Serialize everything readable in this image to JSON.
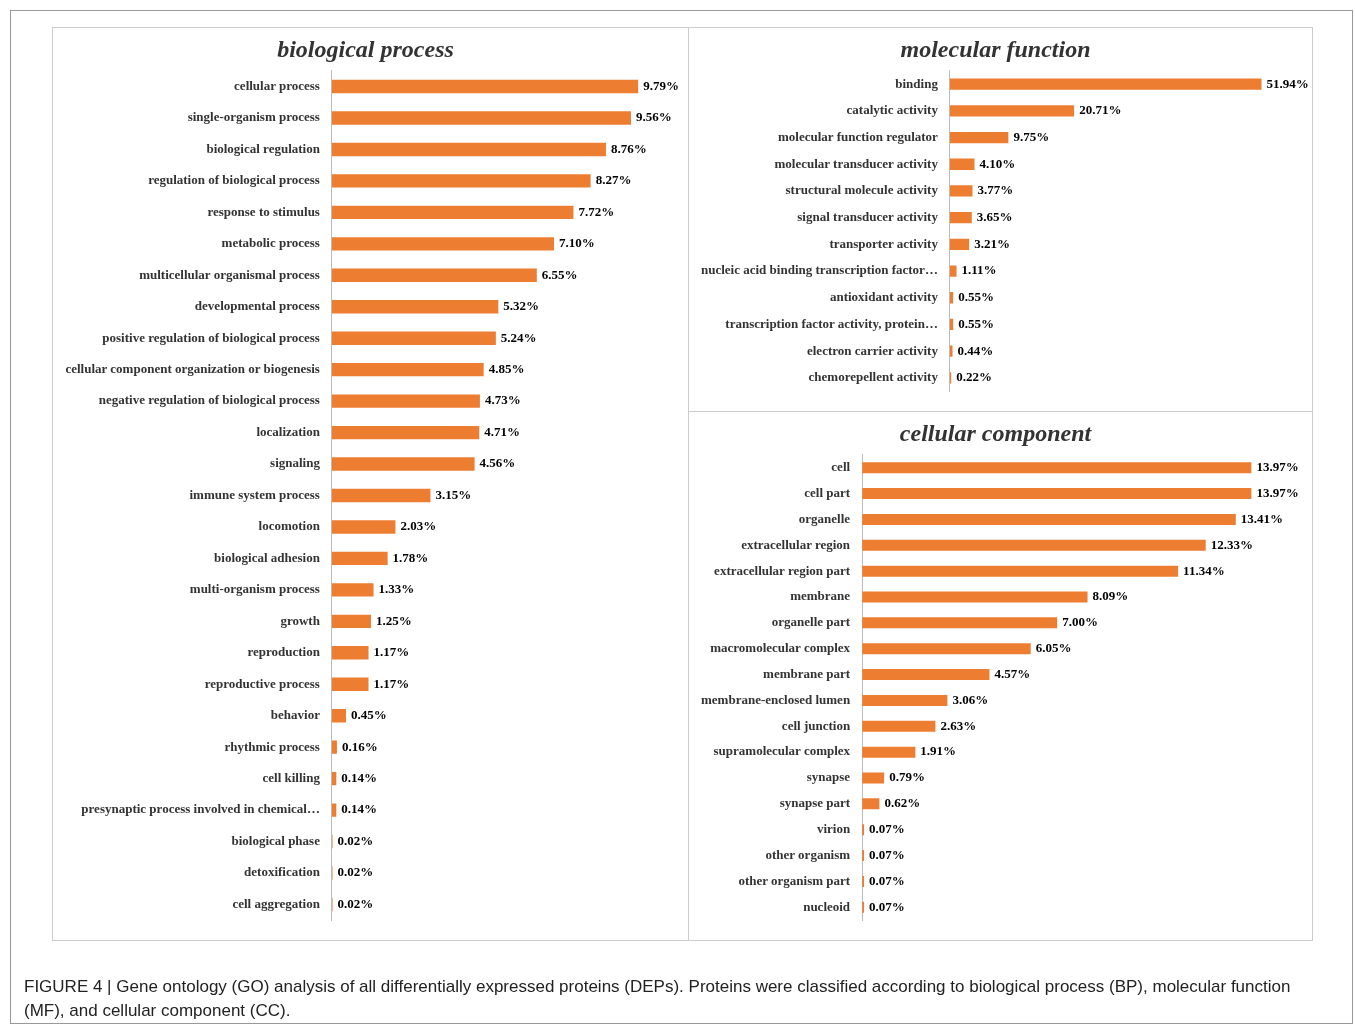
{
  "chart_data": [
    {
      "type": "bar",
      "orientation": "horizontal",
      "title": "biological process",
      "tick_labels": "y",
      "grid": false,
      "legend": false,
      "color": "#ed7d31",
      "categories": [
        "cellular process",
        "single-organism process",
        "biological regulation",
        "regulation of biological process",
        "response to stimulus",
        "metabolic process",
        "multicellular organismal process",
        "developmental process",
        "positive regulation of biological process",
        "cellular component organization or biogenesis",
        "negative regulation of biological process",
        "localization",
        "signaling",
        "immune system process",
        "locomotion",
        "biological adhesion",
        "multi-organism process",
        "growth",
        "reproduction",
        "reproductive process",
        "behavior",
        "rhythmic process",
        "cell killing",
        "presynaptic process involved in chemical…",
        "biological phase",
        "detoxification",
        "cell aggregation"
      ],
      "values": [
        9.79,
        9.56,
        8.76,
        8.27,
        7.72,
        7.1,
        6.55,
        5.32,
        5.24,
        4.85,
        4.73,
        4.71,
        4.56,
        3.15,
        2.03,
        1.78,
        1.33,
        1.25,
        1.17,
        1.17,
        0.45,
        0.16,
        0.14,
        0.14,
        0.02,
        0.02,
        0.02
      ],
      "value_labels": [
        "9.79%",
        "9.56%",
        "8.76%",
        "8.27%",
        "7.72%",
        "7.10%",
        "6.55%",
        "5.32%",
        "5.24%",
        "4.85%",
        "4.73%",
        "4.71%",
        "4.56%",
        "3.15%",
        "2.03%",
        "1.78%",
        "1.33%",
        "1.25%",
        "1.17%",
        "1.17%",
        "0.45%",
        "0.16%",
        "0.14%",
        "0.14%",
        "0.02%",
        "0.02%",
        "0.02%"
      ],
      "annotations": [
        "FIGURE 4 | Gene ontology (GO) analysis of all differentially expressed proteins (DEPs). Proteins were classified according to biological process (BP), molecular function (MF), and cellular component (CC)."
      ]
    },
    {
      "type": "bar",
      "orientation": "horizontal",
      "title": "molecular function",
      "tick_labels": "y",
      "grid": false,
      "legend": false,
      "color": "#ed7d31",
      "categories": [
        "binding",
        "catalytic activity",
        "molecular function regulator",
        "molecular transducer activity",
        "structural molecule activity",
        "signal transducer activity",
        "transporter activity",
        "nucleic acid binding transcription factor…",
        "antioxidant activity",
        "transcription factor activity, protein…",
        "electron carrier activity",
        "chemorepellent activity"
      ],
      "values": [
        51.94,
        20.71,
        9.75,
        4.1,
        3.77,
        3.65,
        3.21,
        1.11,
        0.55,
        0.55,
        0.44,
        0.22
      ],
      "value_labels": [
        "51.94%",
        "20.71%",
        "9.75%",
        "4.10%",
        "3.77%",
        "3.65%",
        "3.21%",
        "1.11%",
        "0.55%",
        "0.55%",
        "0.44%",
        "0.22%"
      ]
    },
    {
      "type": "bar",
      "orientation": "horizontal",
      "title": "cellular component",
      "tick_labels": "y",
      "grid": false,
      "legend": false,
      "color": "#ed7d31",
      "categories": [
        "cell",
        "cell part",
        "organelle",
        "extracellular region",
        "extracellular region part",
        "membrane",
        "organelle part",
        "macromolecular complex",
        "membrane part",
        "membrane-enclosed lumen",
        "cell junction",
        "supramolecular complex",
        "synapse",
        "synapse part",
        "virion",
        "other organism",
        "other organism part",
        "nucleoid"
      ],
      "values": [
        13.97,
        13.97,
        13.41,
        12.33,
        11.34,
        8.09,
        7.0,
        6.05,
        4.57,
        3.06,
        2.63,
        1.91,
        0.79,
        0.62,
        0.07,
        0.07,
        0.07,
        0.07
      ],
      "value_labels": [
        "13.97%",
        "13.97%",
        "13.41%",
        "12.33%",
        "11.34%",
        "8.09%",
        "7.00%",
        "6.05%",
        "4.57%",
        "3.06%",
        "2.63%",
        "1.91%",
        "0.79%",
        "0.62%",
        "0.07%",
        "0.07%",
        "0.07%",
        "0.07%"
      ]
    }
  ]
}
